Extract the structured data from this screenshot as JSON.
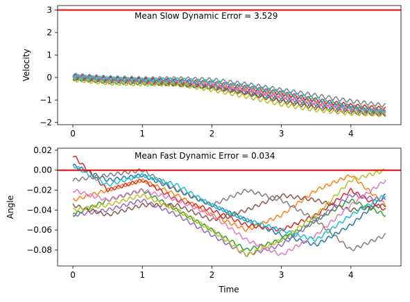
{
  "chart_data": [
    {
      "type": "line",
      "title": "Mean Slow Dynamic Error = 3.529",
      "xlabel": "",
      "ylabel": "Velocity",
      "xlim": [
        -0.22,
        4.72
      ],
      "ylim": [
        -2.1,
        3.2
      ],
      "xticks": [
        0,
        1,
        2,
        3,
        4
      ],
      "yticks": [
        -2,
        -1,
        0,
        1,
        2,
        3
      ],
      "grid": false,
      "reference_line": {
        "y": 3,
        "color": "#ff0000"
      },
      "series": [
        {
          "color": "#1f77b4",
          "x": [
            0,
            0.5,
            1,
            1.5,
            2,
            2.5,
            3,
            3.5,
            4,
            4.5
          ],
          "y": [
            0.05,
            -0.05,
            -0.1,
            -0.2,
            -0.35,
            -0.55,
            -0.8,
            -1.1,
            -1.35,
            -1.55
          ]
        },
        {
          "color": "#ff7f0e",
          "x": [
            0,
            0.5,
            1,
            1.5,
            2,
            2.5,
            3,
            3.5,
            4,
            4.5
          ],
          "y": [
            0.0,
            -0.1,
            -0.15,
            -0.2,
            -0.3,
            -0.5,
            -0.75,
            -1.05,
            -1.3,
            -1.45
          ]
        },
        {
          "color": "#2ca02c",
          "x": [
            0,
            0.5,
            1,
            1.5,
            2,
            2.5,
            3,
            3.5,
            4,
            4.5
          ],
          "y": [
            -0.05,
            -0.2,
            -0.25,
            -0.3,
            -0.45,
            -0.7,
            -1.0,
            -1.3,
            -1.5,
            -1.6
          ]
        },
        {
          "color": "#d62728",
          "x": [
            0,
            0.5,
            1,
            1.5,
            2,
            2.5,
            3,
            3.5,
            4,
            4.5
          ],
          "y": [
            0.1,
            -0.05,
            -0.1,
            -0.15,
            -0.25,
            -0.45,
            -0.7,
            -1.0,
            -1.25,
            -1.4
          ]
        },
        {
          "color": "#9467bd",
          "x": [
            0,
            0.5,
            1,
            1.5,
            2,
            2.5,
            3,
            3.5,
            4,
            4.5
          ],
          "y": [
            0.0,
            -0.15,
            -0.2,
            -0.25,
            -0.4,
            -0.65,
            -0.95,
            -1.25,
            -1.45,
            -1.55
          ]
        },
        {
          "color": "#8c564b",
          "x": [
            0,
            0.5,
            1,
            1.5,
            2,
            2.5,
            3,
            3.5,
            4,
            4.5
          ],
          "y": [
            -0.05,
            -0.15,
            -0.2,
            -0.3,
            -0.45,
            -0.7,
            -1.05,
            -1.35,
            -1.55,
            -1.65
          ]
        },
        {
          "color": "#e377c2",
          "x": [
            0,
            0.5,
            1,
            1.5,
            2,
            2.5,
            3,
            3.5,
            4,
            4.5
          ],
          "y": [
            0.05,
            -0.1,
            -0.15,
            -0.2,
            -0.3,
            -0.55,
            -0.85,
            -1.15,
            -1.4,
            -1.5
          ]
        },
        {
          "color": "#7f7f7f",
          "x": [
            0,
            0.5,
            1,
            1.5,
            2,
            2.5,
            3,
            3.5,
            4,
            4.5
          ],
          "y": [
            0.1,
            0.0,
            -0.05,
            -0.05,
            -0.1,
            -0.3,
            -0.55,
            -0.8,
            -1.05,
            -1.25
          ]
        },
        {
          "color": "#bcbd22",
          "x": [
            0,
            0.5,
            1,
            1.5,
            2,
            2.5,
            3,
            3.5,
            4,
            4.5
          ],
          "y": [
            -0.1,
            -0.25,
            -0.3,
            -0.3,
            -0.55,
            -0.85,
            -1.2,
            -1.45,
            -1.6,
            -1.65
          ]
        },
        {
          "color": "#17becf",
          "x": [
            0,
            0.5,
            1,
            1.5,
            2,
            2.5,
            3,
            3.5,
            4,
            4.5
          ],
          "y": [
            0.05,
            -0.05,
            -0.1,
            -0.1,
            -0.2,
            -0.4,
            -0.65,
            -0.95,
            -1.3,
            -1.5
          ]
        }
      ]
    },
    {
      "type": "line",
      "title": "Mean Fast Dynamic Error = 0.034",
      "xlabel": "Time",
      "ylabel": "Angle",
      "xlim": [
        -0.22,
        4.72
      ],
      "ylim": [
        -0.096,
        0.022
      ],
      "xticks": [
        0,
        1,
        2,
        3,
        4
      ],
      "yticks": [
        -0.08,
        -0.06,
        -0.04,
        -0.02,
        0.0,
        0.02
      ],
      "ytick_labels": [
        "−0.08",
        "−0.06",
        "−0.04",
        "−0.02",
        "0.00",
        "0.02"
      ],
      "grid": false,
      "reference_line": {
        "y": 0,
        "color": "#ff0000"
      },
      "series": [
        {
          "color": "#1f77b4",
          "x": [
            0,
            0.5,
            1,
            1.5,
            2,
            2.5,
            3,
            3.5,
            4,
            4.5
          ],
          "y": [
            0.005,
            -0.01,
            -0.005,
            -0.02,
            -0.035,
            -0.05,
            -0.065,
            -0.075,
            -0.055,
            -0.025
          ]
        },
        {
          "color": "#ff7f0e",
          "x": [
            0,
            0.5,
            1,
            1.5,
            2,
            2.5,
            3,
            3.5,
            4,
            4.5
          ],
          "y": [
            -0.03,
            -0.02,
            -0.01,
            -0.025,
            -0.045,
            -0.06,
            -0.045,
            -0.02,
            -0.005,
            -0.035
          ]
        },
        {
          "color": "#2ca02c",
          "x": [
            0,
            0.5,
            1,
            1.5,
            2,
            2.5,
            3,
            3.5,
            4,
            4.5
          ],
          "y": [
            -0.045,
            -0.03,
            -0.02,
            -0.04,
            -0.06,
            -0.08,
            -0.07,
            -0.05,
            -0.03,
            -0.045
          ]
        },
        {
          "color": "#d62728",
          "x": [
            0,
            0.5,
            1,
            1.5,
            2,
            2.5,
            3,
            3.5,
            4,
            4.5
          ],
          "y": [
            0.015,
            -0.02,
            -0.01,
            -0.03,
            -0.04,
            -0.055,
            -0.06,
            -0.045,
            -0.02,
            -0.04
          ]
        },
        {
          "color": "#9467bd",
          "x": [
            0,
            0.5,
            1,
            1.5,
            2,
            2.5,
            3,
            3.5,
            4,
            4.5
          ],
          "y": [
            -0.045,
            -0.04,
            -0.03,
            -0.045,
            -0.065,
            -0.085,
            -0.075,
            -0.05,
            -0.025,
            -0.03
          ]
        },
        {
          "color": "#8c564b",
          "x": [
            0,
            0.5,
            1,
            1.5,
            2,
            2.5,
            3,
            3.5,
            4,
            4.5
          ],
          "y": [
            -0.035,
            -0.045,
            -0.035,
            -0.035,
            -0.05,
            -0.04,
            -0.025,
            -0.03,
            -0.04,
            -0.035
          ]
        },
        {
          "color": "#e377c2",
          "x": [
            0,
            0.5,
            1,
            1.5,
            2,
            2.5,
            3,
            3.5,
            4,
            4.5
          ],
          "y": [
            -0.02,
            -0.03,
            -0.02,
            -0.03,
            -0.045,
            -0.07,
            -0.085,
            -0.065,
            -0.035,
            -0.01
          ]
        },
        {
          "color": "#7f7f7f",
          "x": [
            0,
            0.5,
            1,
            1.5,
            2,
            2.5,
            3,
            3.5,
            4,
            4.5
          ],
          "y": [
            -0.01,
            -0.005,
            0.0,
            -0.02,
            -0.035,
            -0.02,
            -0.03,
            -0.05,
            -0.08,
            -0.065
          ]
        },
        {
          "color": "#bcbd22",
          "x": [
            0,
            0.5,
            1,
            1.5,
            2,
            2.5,
            3,
            3.5,
            4,
            4.5
          ],
          "y": [
            -0.04,
            -0.035,
            -0.025,
            -0.04,
            -0.06,
            -0.085,
            -0.07,
            -0.045,
            -0.01,
            0.0
          ]
        },
        {
          "color": "#17becf",
          "x": [
            0,
            0.5,
            1,
            1.5,
            2,
            2.5,
            3,
            3.5,
            4,
            4.5
          ],
          "y": [
            0.005,
            -0.015,
            -0.005,
            -0.015,
            -0.035,
            -0.05,
            -0.06,
            -0.07,
            -0.045,
            -0.025
          ]
        }
      ]
    }
  ]
}
